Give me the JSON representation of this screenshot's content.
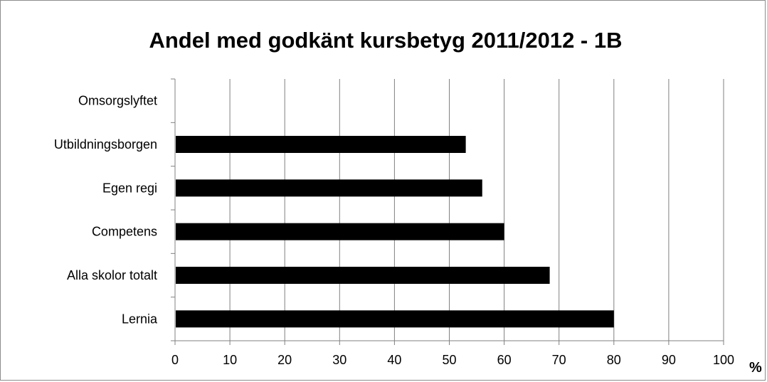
{
  "chart_data": {
    "type": "bar",
    "orientation": "horizontal",
    "title": "Andel med godkänt kursbetyg 2011/2012 - 1B",
    "categories": [
      "Lernia",
      "Alla skolor totalt",
      "Competens",
      "Egen regi",
      "Utbildningsborgen",
      "Omsorgslyftet"
    ],
    "values": [
      80,
      68.3,
      60,
      56,
      53,
      null
    ],
    "xlim": [
      0,
      100
    ],
    "xticks": [
      "0",
      "10",
      "20",
      "30",
      "40",
      "50",
      "60",
      "70",
      "80",
      "90",
      "100"
    ],
    "xunit": "%",
    "grid": "vertical",
    "legend": "none",
    "bar_color": "#000000",
    "grid_color": "#808080"
  }
}
